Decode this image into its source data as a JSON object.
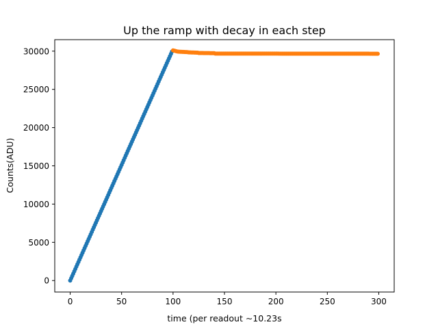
{
  "chart_data": {
    "type": "scatter",
    "title": "Up the ramp with decay in each step",
    "xlabel": "time (per readout  ∼10.23s",
    "ylabel": "Counts(ADU)",
    "xlim": [
      -15,
      315
    ],
    "ylim": [
      -1500,
      31500
    ],
    "xticks": [
      0,
      50,
      100,
      150,
      200,
      250,
      300
    ],
    "yticks": [
      0,
      5000,
      10000,
      15000,
      20000,
      25000,
      30000
    ],
    "grid": false,
    "legend": "none",
    "series": [
      {
        "color": "#1f77b4",
        "marker": "circle",
        "x_range": [
          0,
          99
        ],
        "segments": [
          {
            "x_start": 0,
            "x_end": 99,
            "y_start": 0,
            "y_end": 29950
          }
        ]
      },
      {
        "color": "#ff7f0e",
        "marker": "circle",
        "x_range": [
          100,
          299
        ],
        "segments": [
          {
            "x_start": 100,
            "x_end": 104,
            "y_start": 30100,
            "y_end": 29960
          },
          {
            "x_start": 105,
            "x_end": 114,
            "y_start": 29930,
            "y_end": 29870
          },
          {
            "x_start": 115,
            "x_end": 124,
            "y_start": 29840,
            "y_end": 29800
          },
          {
            "x_start": 125,
            "x_end": 140,
            "y_start": 29760,
            "y_end": 29730
          },
          {
            "x_start": 141,
            "x_end": 299,
            "y_start": 29680,
            "y_end": 29660
          }
        ]
      }
    ]
  }
}
